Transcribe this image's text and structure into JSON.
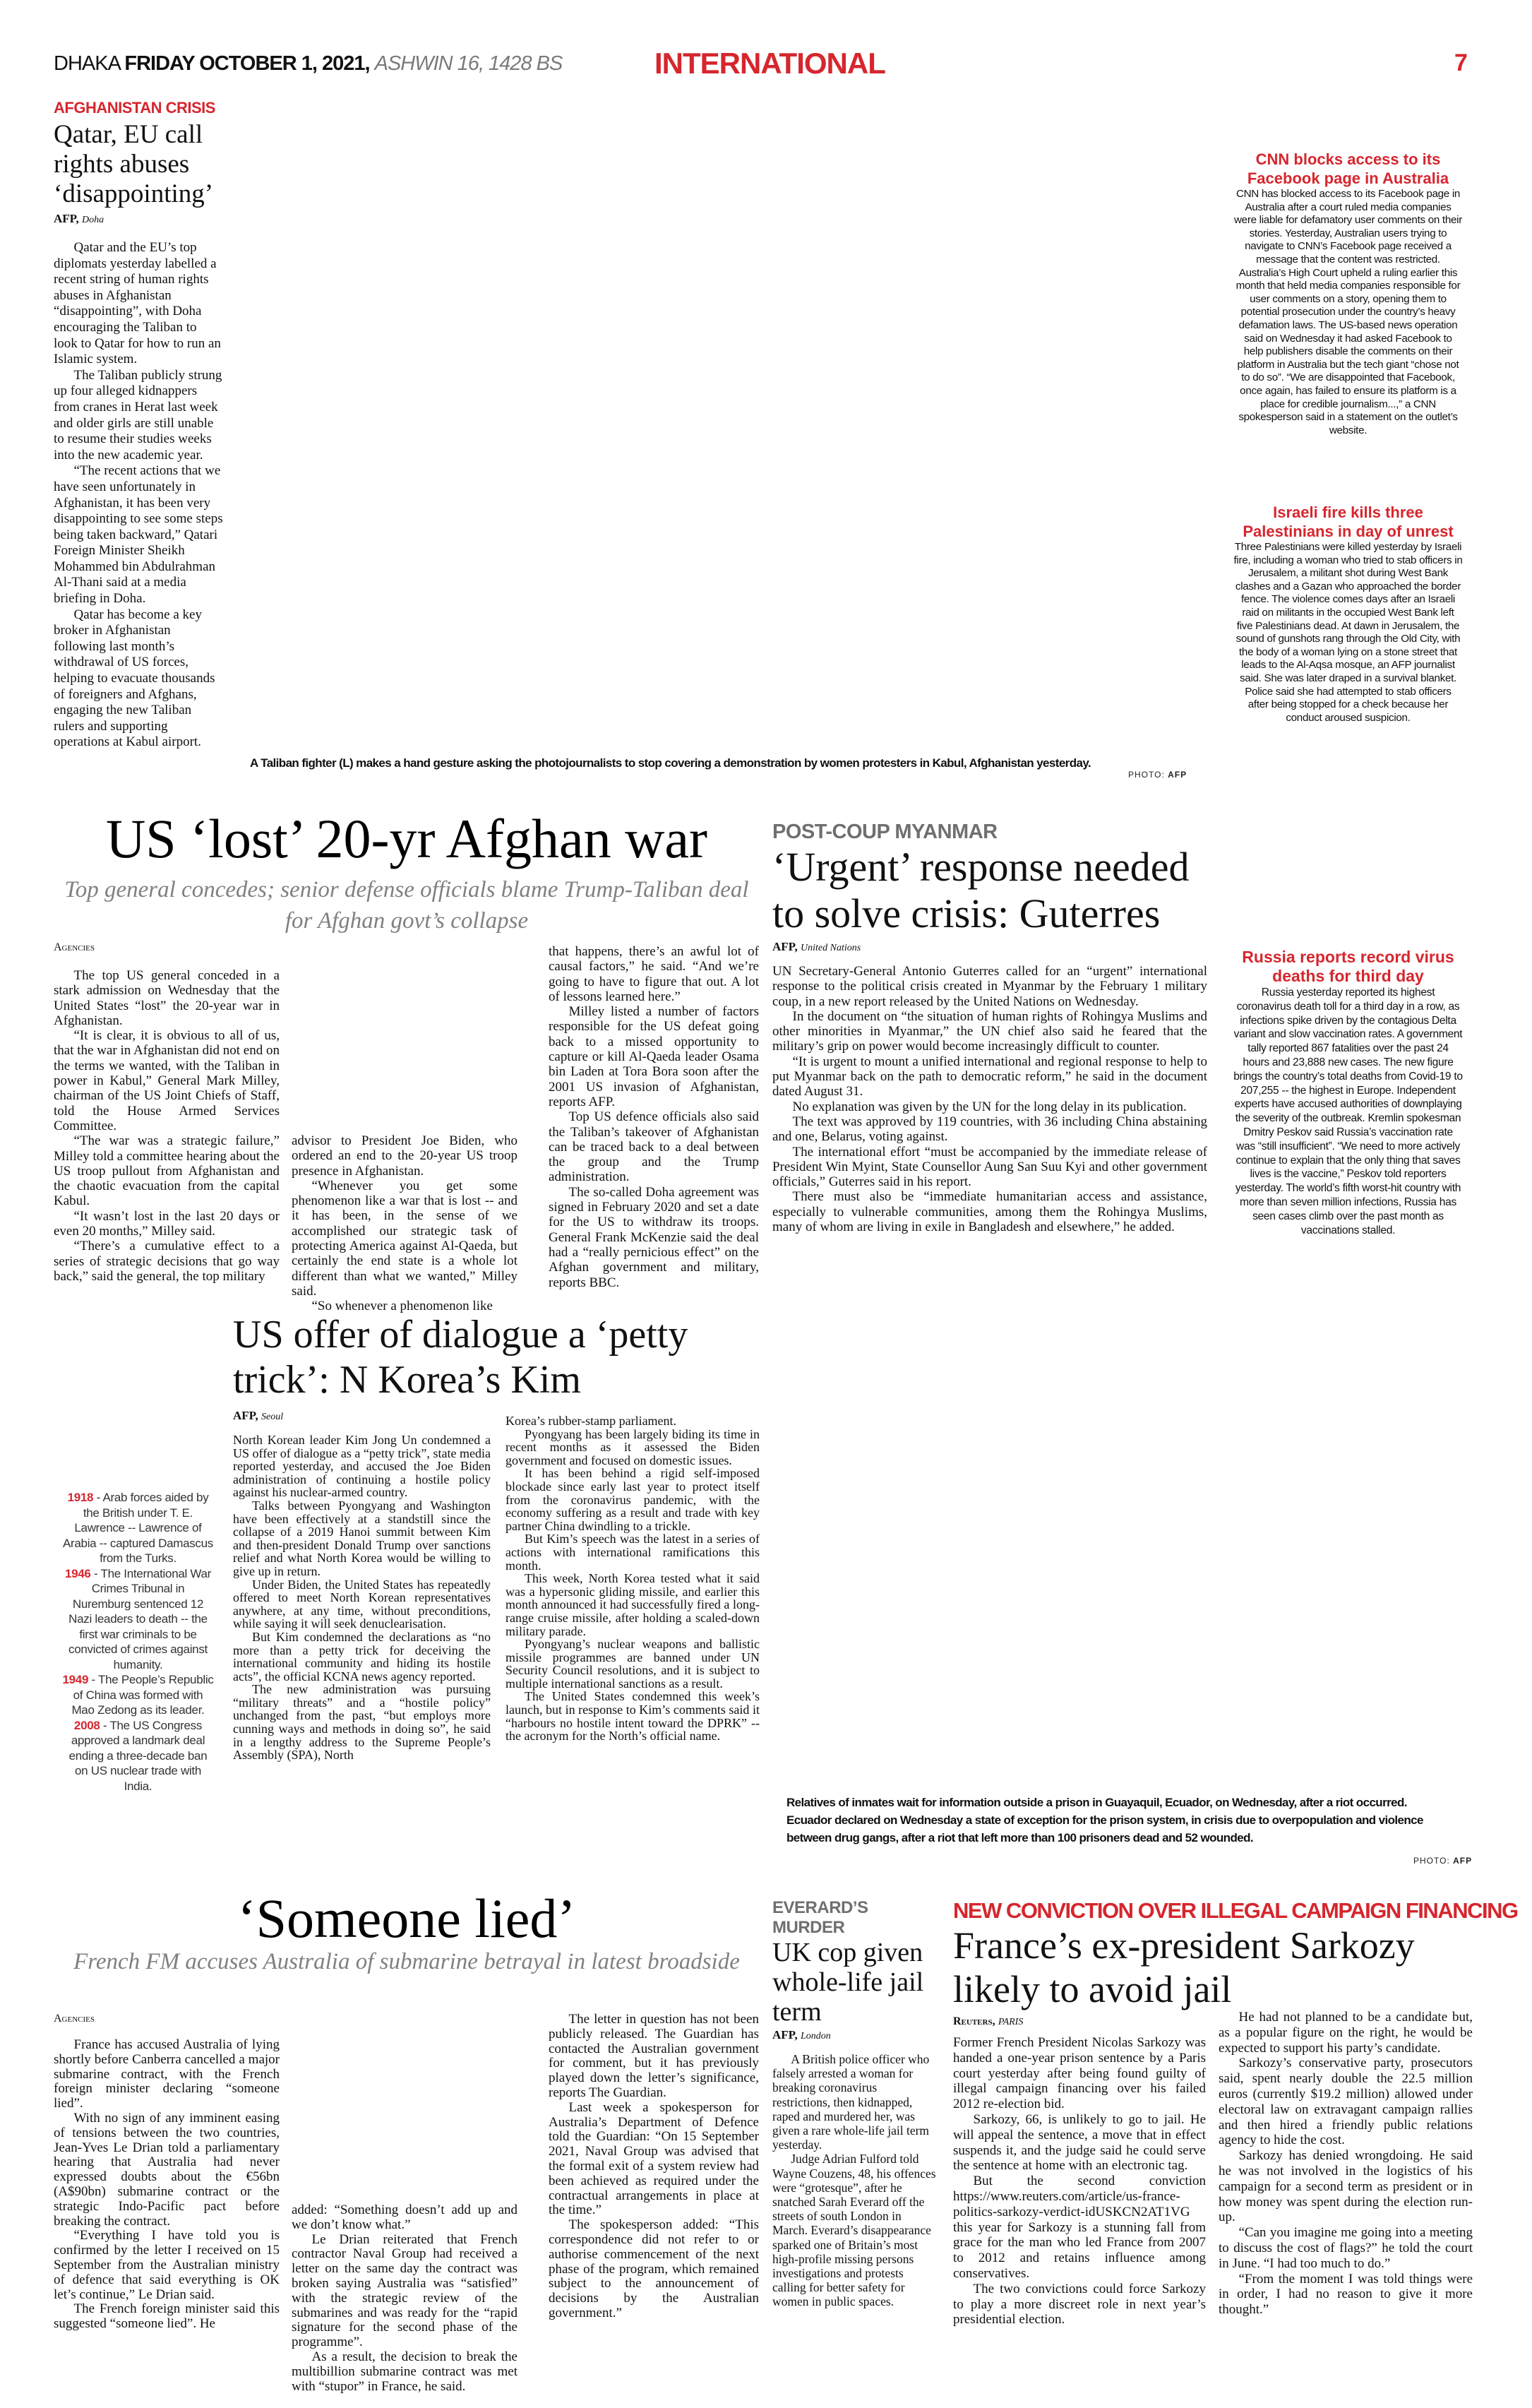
{
  "masthead": {
    "city": "DHAKA",
    "date": "FRIDAY OCTOBER 1, 2021,",
    "bangla_date": "ASHWIN 16, 1428 BS",
    "section": "INTERNATIONAL",
    "page_number": "7",
    "accent_color": "#d6262e"
  },
  "qatar": {
    "kicker": "AFGHANISTAN CRISIS",
    "headline": "Qatar, EU call rights abuses ‘disappointing’",
    "agency": "AFP,",
    "dateline": "Doha",
    "paragraphs": [
      "Qatar and the EU’s top diplomats yesterday labelled a recent string of human rights abuses in Afghanistan “disappointing”, with Doha encouraging the Taliban to look to Qatar for how to run an Islamic system.",
      "The Taliban publicly strung up four alleged kidnappers from cranes in Herat last week and older girls are still unable to resume their studies weeks into the new academic year.",
      "“The recent actions that we have seen unfortunately in Afghanistan, it has been very disappointing to see some steps being taken backward,” Qatari Foreign Minister Sheikh Mohammed bin Abdulrahman Al-Thani said at a media briefing in Doha.",
      "Qatar has become a key broker in Afghanistan following last month’s withdrawal of US forces, helping to evacuate thousands of foreigners and Afghans, engaging the new Taliban rulers and supporting operations at Kabul airport."
    ]
  },
  "photo_taliban": {
    "caption": "A Taliban fighter (L) makes a hand gesture asking the photojournalists to stop covering a demonstration by women protesters in Kabul, Afghanistan yesterday.",
    "credit_label": "PHOTO:",
    "credit_source": "AFP"
  },
  "cnn": {
    "headline": "CNN blocks access to its Facebook page in Australia",
    "body": "CNN has blocked access to its Facebook page in Australia after a court ruled media companies were liable for defamatory user comments on their stories. Yesterday, Australian users trying to navigate to CNN’s Facebook page received a message that the content was restricted. Australia’s High Court upheld a ruling earlier this month that held media companies responsible for user comments on a story, opening them to potential prosecution under the country’s heavy defamation laws. The US-based news operation said on Wednesday it had asked Facebook to help publishers disable the comments on their platform in Australia but the tech giant “chose not to do so”. “We are disappointed that Facebook, once again, has failed to ensure its platform is a place for credible journalism...,” a CNN spokesperson said in a statement on the outlet’s website."
  },
  "israel": {
    "headline": "Israeli fire kills three Palestinians in day of unrest",
    "body": "Three Palestinians were killed yesterday by Israeli fire, including a woman who tried to stab officers in Jerusalem, a militant shot during West Bank clashes and a Gazan who approached the border fence. The violence comes days after an Israeli raid on militants in the occupied West Bank left five Palestinians dead. At dawn in Jerusalem, the sound of gunshots rang through the Old City, with the body of a woman lying on a stone street that leads to the Al-Aqsa mosque, an AFP journalist said. She was later draped in a survival blanket. Police said she had attempted to stab officers after being stopped for a check because her conduct aroused suspicion."
  },
  "afghan_war": {
    "headline": "US ‘lost’ 20-yr Afghan war",
    "deck": "Top general concedes; senior defense officials blame Trump-Taliban deal for Afghan govt’s collapse",
    "agency": "Agencies",
    "columns": [
      [
        "The top US general conceded in a stark admission on Wednesday that the United States “lost” the 20-year war in Afghanistan.",
        "“It is clear, it is obvious to all of us, that the war in Afghanistan did not end on the terms we wanted, with the Taliban in power in Kabul,” General Mark Milley, chairman of the US Joint Chiefs of Staff, told the House Armed Services Committee.",
        "“The war was a strategic failure,” Milley told a committee hearing about the US troop pullout from Afghanistan and the chaotic evacuation from the capital Kabul.",
        "“It wasn’t lost in the last 20 days or even 20 months,” Milley said.",
        "“There’s a cumulative effect to a series of strategic decisions that go way back,” said the general, the top military"
      ],
      [
        "advisor to President Joe Biden, who ordered an end to the 20-year US troop presence in Afghanistan.",
        "“Whenever you get some phenomenon like a war that is lost -- and it has been, in the sense of we accomplished our strategic task of protecting America against Al-Qaeda, but certainly the end state is a whole lot different than what we wanted,” Milley said.",
        "“So whenever a phenomenon like"
      ],
      [
        "that happens, there’s an awful lot of causal factors,” he said. “And we’re going to have to figure that out. A lot of lessons learned here.”",
        "Milley listed a number of factors responsible for the US defeat going back to a missed opportunity to capture or kill Al-Qaeda leader Osama bin Laden at Tora Bora soon after the 2001 US invasion of Afghanistan, reports AFP.",
        "Top US defence officials also said the Taliban’s takeover of Afghanistan can be traced back to a deal between the group and the Trump administration.",
        "The so-called Doha agreement was signed in February 2020 and set a date for the US to withdraw its troops. General Frank McKenzie said the deal had a “really pernicious effect” on the Afghan government and military, reports BBC."
      ]
    ]
  },
  "myanmar": {
    "kicker": "POST-COUP MYANMAR",
    "headline": "‘Urgent’ response needed to solve crisis: Guterres",
    "agency": "AFP,",
    "dateline": "United Nations",
    "paragraphs": [
      "UN Secretary-General Antonio Guterres called for an “urgent” international response to the political crisis created in Myanmar by the February 1 military coup, in a new report released by the United Nations on Wednesday.",
      "In the document on “the situation of human rights of Rohingya Muslims and other minorities in Myanmar,” the UN chief also said he feared that the military’s grip on power would become increasingly difficult to counter.",
      "“It is urgent to mount a unified international and regional response to help to put Myanmar back on the path to democratic reform,” he said in the document dated August 31.",
      "No explanation was given by the UN for the long delay in its publication.",
      "The text was approved by 119 countries, with 36 including China abstaining and one, Belarus, voting against.",
      "The international effort “must be accompanied by the immediate release of President Win Myint, State Counsellor Aung San Suu Kyi and other government officials,” Guterres said in his report.",
      "There must also be “immediate humanitarian access and assistance, especially to vulnerable communities, among them the Rohingya Muslims, many of whom are living in exile in Bangladesh and elsewhere,” he added."
    ]
  },
  "russia": {
    "headline": "Russia reports record virus deaths for third day",
    "body": "Russia yesterday reported its highest coronavirus death toll for a third day in a row, as infections spike driven by the contagious Delta variant and slow vaccination rates. A government tally reported 867 fatalities over the past 24 hours and 23,888 new cases. The new figure brings the country’s total deaths from Covid-19 to 207,255 -- the highest in Europe. Independent experts have accused authorities of downplaying the severity of the outbreak. Kremlin spokesman Dmitry Peskov said Russia’s vaccination rate was “still insufficient”. “We need to more actively continue to explain that the only thing that saves lives is the vaccine,” Peskov told reporters yesterday. The world’s fifth worst-hit country with more than seven million infections, Russia has seen cases climb over the past month as vaccinations stalled."
  },
  "korea": {
    "headline": "US offer of dialogue a ‘petty trick’: N Korea’s Kim",
    "agency": "AFP,",
    "dateline": "Seoul",
    "columns": [
      [
        "North Korean leader Kim Jong Un condemned a US offer of dialogue as a “petty trick”, state media reported yesterday, and accused the Joe Biden administration of continuing a hostile policy against his nuclear-armed country.",
        "Talks between Pyongyang and Washington have been effectively at a standstill since the collapse of a 2019 Hanoi summit between Kim and then-president Donald Trump over sanctions relief and what North Korea would be willing to give up in return.",
        "Under Biden, the United States has repeatedly offered to meet North Korean representatives anywhere, at any time, without preconditions, while saying it will seek denuclearisation.",
        "But Kim condemned the declarations as “no more than a petty trick for deceiving the international community and hiding its hostile acts”, the official KCNA news agency reported.",
        "The new administration was pursuing “military threats” and a “hostile policy” unchanged from the past, “but employs more cunning ways and methods in doing so”, he said in a lengthy address to the Supreme People’s Assembly (SPA), North"
      ],
      [
        "Korea’s rubber-stamp parliament.",
        "Pyongyang has been largely biding its time in recent months as it assessed the Biden government and focused on domestic issues.",
        "It has been behind a rigid self-imposed blockade since early last year to protect itself from the coronavirus pandemic, with the economy suffering as a result and trade with key partner China dwindling to a trickle.",
        "But Kim’s speech was the latest in a series of actions with international ramifications this month.",
        "This week, North Korea tested what it said was a hypersonic gliding missile, and earlier this month announced it had successfully fired a long-range cruise missile, after holding a scaled-down military parade.",
        "Pyongyang’s nuclear weapons and ballistic missile programmes are banned under UN Security Council resolutions, and it is subject to multiple international sanctions as a result.",
        "The United States condemned this week’s launch, but in response to Kim’s comments said it “harbours no hostile intent toward the DPRK” -- the acronym for the North’s official name."
      ]
    ]
  },
  "timeline": [
    {
      "year": "1918",
      "text": " - Arab forces aided by the British under T. E. Lawrence -- Lawrence of Arabia -- captured Damascus from the Turks."
    },
    {
      "year": "1946",
      "text": " - The International War Crimes Tribunal in Nuremburg sentenced 12 Nazi leaders to death -- the first war criminals to be convicted of crimes against humanity."
    },
    {
      "year": "1949",
      "text": " - The People’s Republic of China was formed with Mao Zedong as its leader."
    },
    {
      "year": "2008",
      "text": " - The US Congress approved a landmark deal ending a three-decade ban on US nuclear trade with India."
    }
  ],
  "photo_ecuador": {
    "caption": "Relatives of inmates wait for information outside a prison in Guayaquil, Ecuador, on Wednesday, after a riot occurred. Ecuador declared on Wednesday a state of exception for the prison system, in crisis due to overpopulation and violence between drug gangs, after a riot that left more than 100 prisoners dead and 52 wounded.",
    "credit_label": "PHOTO:",
    "credit_source": "AFP"
  },
  "submarine": {
    "headline": "‘Someone lied’",
    "deck": "French FM accuses Australia of submarine betrayal in latest broadside",
    "agency": "Agencies",
    "columns": [
      [
        "France has accused Australia of lying shortly before Canberra cancelled a major submarine contract, with the French foreign minister declaring “someone lied”.",
        "With no sign of any imminent easing of tensions between the two countries, Jean-Yves Le Drian told a parliamentary hearing that Australia had never expressed doubts about the €56bn (A$90bn) submarine contract or the strategic Indo-Pacific pact before breaking the contract.",
        "“Everything I have told you is confirmed by the letter I received on 15 September from the Australian ministry of defence that said everything is OK let’s continue,” Le Drian said.",
        "The French foreign minister said this suggested “someone lied”. He"
      ],
      [
        "added: “Something doesn’t add up and we don’t know what.”",
        "Le Drian reiterated that French contractor Naval Group had received a letter on the same day the contract was broken saying Australia was “satisfied” with the strategic review of the submarines and was ready for the “rapid signature for the second phase of the programme”.",
        "As a result, the decision to break the multibillion submarine contract was met with “stupor” in France, he said."
      ],
      [
        "The letter in question has not been publicly released. The Guardian has contacted the Australian government for comment, but it has previously played down the letter’s significance, reports The Guardian.",
        "Last week a spokesperson for Australia’s Department of Defence told the Guardian: “On 15 September 2021, Naval Group was advised that the formal exit of a system review had been achieved as required under the contractual arrangements in place at the time.”",
        "The spokesperson added: “This correspondence did not refer to or authorise commencement of the next phase of the program, which remained subject to the announcement of decisions by the Australian government.”"
      ]
    ]
  },
  "ukcop": {
    "kicker": "EVERARD’S MURDER",
    "headline": "UK cop given whole-life jail term",
    "agency": "AFP,",
    "dateline": "London",
    "paragraphs": [
      "A British police officer who falsely arrested a woman for breaking coronavirus restrictions, then kidnapped, raped and murdered her, was given a rare whole-life jail term yesterday.",
      "Judge Adrian Fulford told Wayne Couzens, 48, his offences were “grotesque”, after he snatched Sarah Everard off the streets of south London in March. Everard’s disappearance sparked one of Britain’s most high-profile missing persons investigations and protests calling for better safety for women in public spaces."
    ]
  },
  "sarkozy": {
    "kicker": "NEW CONVICTION OVER ILLEGAL CAMPAIGN FINANCING",
    "headline": "France’s ex-president Sarkozy likely to avoid jail",
    "agency": "Reuters,",
    "dateline": "PARIS",
    "columns": [
      [
        "Former French President Nicolas Sarkozy was handed a one-year prison sentence by a Paris court yesterday after being found guilty of illegal campaign financing over his failed 2012 re-election bid.",
        "Sarkozy, 66, is unlikely to go to jail. He will appeal the sentence, a move that in effect suspends it, and the judge said he could serve the sentence at home with an electronic tag.",
        "But the second conviction https://www.reuters.com/article/us-france-politics-sarkozy-verdict-idUSKCN2AT1VG this year for Sarkozy is a stunning fall from grace for the man who led France from 2007 to 2012 and retains influence among conservatives.",
        "The two convictions could force Sarkozy to play a more discreet role in next year’s presidential election."
      ],
      [
        "He had not planned to be a candidate but, as a popular figure on the right, he would be expected to support his party’s candidate.",
        "Sarkozy’s conservative party, prosecutors said, spent nearly double the 22.5 million euros (currently $19.2 million) allowed under electoral law on extravagant campaign rallies and then hired a friendly public relations agency to hide the cost.",
        "Sarkozy has denied wrongdoing. He said he was not involved in the logistics of his campaign for a second term as president or in how money was spent during the election run-up.",
        "“Can you imagine me going into a meeting to discuss the cost of flags?” he told the court in June. “I had too much to do.”",
        "“From the moment I was told things were in order, I had no reason to give it more thought.”"
      ]
    ]
  }
}
